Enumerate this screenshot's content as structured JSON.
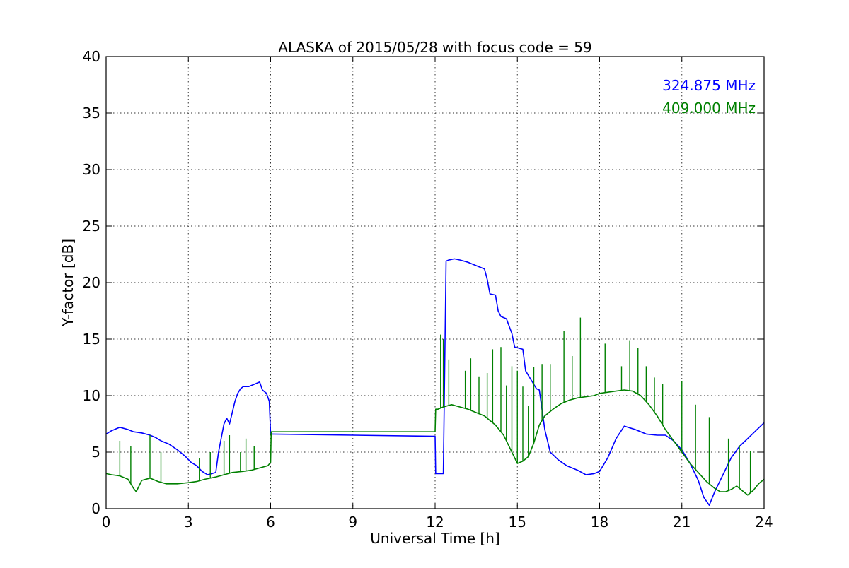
{
  "chart_data": {
    "type": "line",
    "title": "ALASKA of 2015/05/28 with focus code = 59",
    "xlabel": "Universal Time [h]",
    "ylabel": "Y-factor [dB]",
    "xlim": [
      0,
      24
    ],
    "ylim": [
      0,
      40
    ],
    "xticks": [
      0,
      3,
      6,
      9,
      12,
      15,
      18,
      21,
      24
    ],
    "yticks": [
      0,
      5,
      10,
      15,
      20,
      25,
      30,
      35,
      40
    ],
    "grid": true,
    "legend_position": "top-right",
    "series": [
      {
        "name": "324.875 MHz",
        "color": "#0000ff",
        "x": [
          0,
          0.2,
          0.5,
          0.8,
          1.0,
          1.3,
          1.6,
          1.8,
          2.0,
          2.3,
          2.6,
          2.9,
          3.1,
          3.3,
          3.5,
          3.7,
          4.0,
          4.1,
          4.3,
          4.4,
          4.5,
          4.6,
          4.7,
          4.8,
          4.9,
          5.0,
          5.2,
          5.4,
          5.6,
          5.7,
          5.85,
          5.95,
          6.0,
          6.02,
          12.0,
          12.02,
          12.1,
          12.3,
          12.4,
          12.5,
          12.7,
          12.9,
          13.2,
          13.5,
          13.8,
          13.9,
          14.0,
          14.2,
          14.3,
          14.4,
          14.6,
          14.8,
          14.9,
          15.2,
          15.3,
          15.5,
          15.7,
          15.8,
          16.0,
          16.2,
          16.5,
          16.8,
          17.2,
          17.5,
          17.8,
          18.0,
          18.3,
          18.6,
          18.9,
          19.3,
          19.7,
          20.1,
          20.4,
          20.7,
          21.0,
          21.3,
          21.6,
          21.8,
          22.0,
          22.2,
          22.5,
          22.8,
          23.1,
          23.4,
          23.7,
          24.0
        ],
        "y": [
          6.6,
          6.9,
          7.2,
          7.0,
          6.8,
          6.7,
          6.5,
          6.3,
          6.0,
          5.7,
          5.2,
          4.6,
          4.1,
          3.8,
          3.3,
          3.0,
          3.2,
          5.0,
          7.5,
          8.0,
          7.5,
          8.5,
          9.5,
          10.2,
          10.6,
          10.8,
          10.8,
          11.0,
          11.2,
          10.5,
          10.2,
          9.5,
          6.6,
          6.6,
          6.4,
          3.1,
          3.1,
          3.1,
          21.9,
          22.0,
          22.1,
          22.0,
          21.8,
          21.5,
          21.2,
          20.3,
          19.0,
          18.9,
          17.5,
          17.0,
          16.8,
          15.5,
          14.3,
          14.1,
          12.2,
          11.4,
          10.6,
          10.5,
          7.0,
          5.0,
          4.3,
          3.8,
          3.4,
          3.0,
          3.1,
          3.3,
          4.5,
          6.2,
          7.3,
          7.0,
          6.6,
          6.5,
          6.5,
          6.0,
          5.2,
          4.0,
          2.5,
          1.0,
          0.3,
          1.5,
          3.0,
          4.5,
          5.5,
          6.2,
          6.9,
          7.6
        ]
      },
      {
        "name": "409.000 MHz",
        "color": "#008000",
        "x": [
          0,
          0.2,
          0.5,
          0.8,
          1.0,
          1.1,
          1.3,
          1.6,
          1.9,
          2.2,
          2.6,
          3.0,
          3.3,
          3.6,
          4.0,
          4.3,
          4.6,
          5.0,
          5.3,
          5.6,
          5.9,
          6.0,
          6.02,
          12.0,
          12.02,
          12.1,
          12.3,
          12.6,
          12.9,
          13.2,
          13.5,
          13.8,
          14.0,
          14.2,
          14.5,
          14.8,
          15.0,
          15.2,
          15.4,
          15.6,
          15.8,
          16.0,
          16.3,
          16.6,
          16.9,
          17.2,
          17.5,
          17.8,
          18.0,
          18.3,
          18.6,
          18.9,
          19.2,
          19.5,
          19.8,
          20.1,
          20.4,
          20.7,
          21.0,
          21.3,
          21.6,
          21.9,
          22.2,
          22.4,
          22.6,
          22.8,
          23.0,
          23.2,
          23.4,
          23.6,
          23.8,
          24.0
        ],
        "y": [
          3.1,
          3.0,
          2.9,
          2.6,
          1.8,
          1.5,
          2.5,
          2.7,
          2.4,
          2.2,
          2.2,
          2.3,
          2.4,
          2.6,
          2.8,
          3.0,
          3.2,
          3.3,
          3.4,
          3.6,
          3.8,
          4.1,
          6.8,
          6.8,
          8.8,
          8.8,
          9.0,
          9.2,
          9.0,
          8.8,
          8.5,
          8.2,
          7.8,
          7.4,
          6.5,
          5.0,
          4.0,
          4.2,
          4.6,
          5.8,
          7.4,
          8.2,
          8.8,
          9.3,
          9.6,
          9.8,
          9.9,
          10.0,
          10.2,
          10.3,
          10.4,
          10.5,
          10.4,
          10.0,
          9.2,
          8.2,
          7.0,
          6.0,
          5.0,
          4.0,
          3.2,
          2.4,
          1.8,
          1.5,
          1.5,
          1.7,
          2.0,
          1.6,
          1.2,
          1.6,
          2.2,
          2.6
        ]
      }
    ],
    "spikes": [
      {
        "series": 1,
        "x": [
          0.5,
          0.9,
          1.6,
          2.0,
          3.4,
          3.8,
          4.3,
          4.5,
          4.9,
          5.1,
          5.4,
          12.2,
          12.3,
          12.5,
          13.1,
          13.3,
          13.6,
          13.9,
          14.1,
          14.4,
          14.6,
          14.8,
          15.0,
          15.2,
          15.4,
          15.6,
          15.9,
          16.2,
          16.7,
          17.0,
          17.3,
          18.2,
          18.8,
          19.1,
          19.4,
          19.7,
          20.0,
          20.3,
          21.0,
          21.5,
          22.0,
          22.7,
          23.1,
          23.5
        ],
        "y": [
          6.0,
          5.5,
          6.5,
          5.0,
          4.5,
          5.0,
          6.0,
          6.5,
          5.0,
          6.2,
          5.5,
          15.4,
          15.0,
          13.2,
          12.2,
          13.3,
          11.7,
          12.0,
          14.1,
          14.3,
          10.9,
          12.6,
          12.2,
          10.8,
          9.1,
          12.5,
          12.8,
          12.8,
          15.7,
          13.5,
          16.9,
          14.6,
          12.6,
          14.9,
          14.2,
          12.6,
          11.6,
          11.0,
          11.3,
          9.2,
          8.1,
          6.2,
          5.6,
          5.1
        ]
      }
    ],
    "legend": [
      {
        "label": "324.875 MHz",
        "color": "#0000ff"
      },
      {
        "label": "409.000 MHz",
        "color": "#008000"
      }
    ]
  }
}
